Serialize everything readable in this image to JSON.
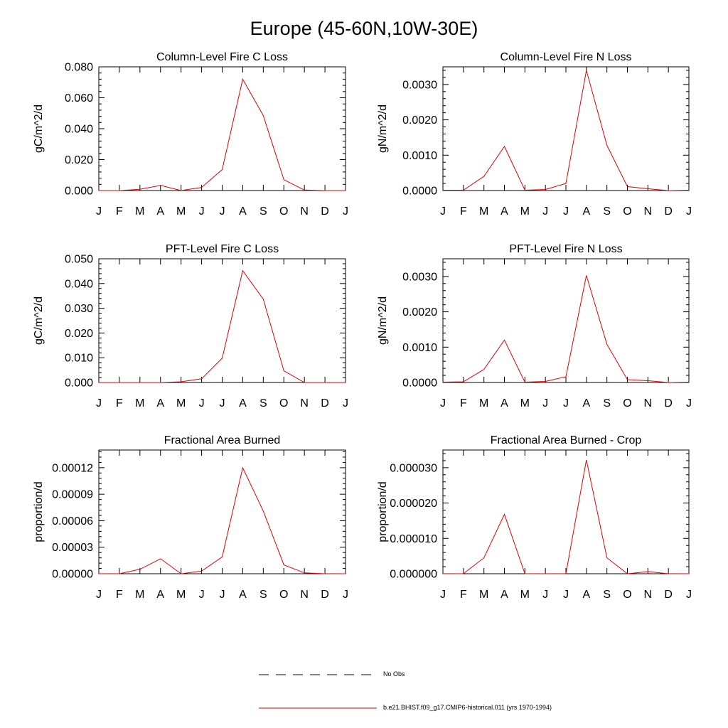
{
  "page_title": "Europe (45-60N,10W-30E)",
  "colors": {
    "model": "#e00000",
    "obs": "#000000",
    "axis": "#000000"
  },
  "month_labels": [
    "J",
    "F",
    "M",
    "A",
    "M",
    "J",
    "J",
    "A",
    "S",
    "O",
    "N",
    "D",
    "J"
  ],
  "legend": [
    {
      "label": "No Obs",
      "style": "dashed",
      "color": "#000000"
    },
    {
      "label": "b.e21.BHIST.f09_g17.CMIP6-historical.011 (yrs 1970-1994)",
      "style": "solid",
      "color": "#e00000"
    }
  ],
  "chart_data": [
    {
      "type": "line",
      "title": "Column-Level Fire C Loss",
      "ylabel": "gC/m^2/d",
      "ylim": [
        0,
        0.08
      ],
      "yticks": [
        0,
        0.02,
        0.04,
        0.06,
        0.08
      ],
      "ytick_labels": [
        "0.000",
        "0.020",
        "0.040",
        "0.060",
        "0.080"
      ],
      "x": [
        "J",
        "F",
        "M",
        "A",
        "M",
        "J",
        "J",
        "A",
        "S",
        "O",
        "N",
        "D",
        "J"
      ],
      "series": [
        {
          "values": [
            0,
            0,
            0.0008,
            0.0033,
            0,
            0.002,
            0.0135,
            0.072,
            0.0485,
            0.007,
            0.0003,
            0,
            0
          ]
        }
      ]
    },
    {
      "type": "line",
      "title": "Column-Level Fire N Loss",
      "ylabel": "gN/m^2/d",
      "ylim": [
        0,
        0.0035
      ],
      "yticks": [
        0,
        0.001,
        0.002,
        0.003
      ],
      "ytick_labels": [
        "0.0000",
        "0.0010",
        "0.0020",
        "0.0030"
      ],
      "x": [
        "J",
        "F",
        "M",
        "A",
        "M",
        "J",
        "J",
        "A",
        "S",
        "O",
        "N",
        "D",
        "J"
      ],
      "series": [
        {
          "values": [
            1e-05,
            1e-05,
            0.0004,
            0.00125,
            1e-05,
            3e-05,
            0.0002,
            0.0034,
            0.00128,
            0.00011,
            5e-05,
            0,
            1e-05
          ]
        }
      ]
    },
    {
      "type": "line",
      "title": "PFT-Level Fire C Loss",
      "ylabel": "gC/m^2/d",
      "ylim": [
        0,
        0.05
      ],
      "yticks": [
        0,
        0.01,
        0.02,
        0.03,
        0.04,
        0.05
      ],
      "ytick_labels": [
        "0.000",
        "0.010",
        "0.020",
        "0.030",
        "0.040",
        "0.050"
      ],
      "x": [
        "J",
        "F",
        "M",
        "A",
        "M",
        "J",
        "J",
        "A",
        "S",
        "O",
        "N",
        "D",
        "J"
      ],
      "series": [
        {
          "values": [
            0,
            0,
            0,
            0,
            0.0003,
            0.0015,
            0.0098,
            0.0452,
            0.0337,
            0.0047,
            0,
            0,
            0
          ]
        }
      ]
    },
    {
      "type": "line",
      "title": "PFT-Level Fire N Loss",
      "ylabel": "gN/m^2/d",
      "ylim": [
        0,
        0.0035
      ],
      "yticks": [
        0,
        0.001,
        0.002,
        0.003
      ],
      "ytick_labels": [
        "0.0000",
        "0.0010",
        "0.0020",
        "0.0030"
      ],
      "x": [
        "J",
        "F",
        "M",
        "A",
        "M",
        "J",
        "J",
        "A",
        "S",
        "O",
        "N",
        "D",
        "J"
      ],
      "series": [
        {
          "values": [
            1e-05,
            2e-05,
            0.00037,
            0.0012,
            1e-05,
            3e-05,
            0.00016,
            0.00303,
            0.00108,
            8e-05,
            5e-05,
            0,
            1e-05
          ]
        }
      ]
    },
    {
      "type": "line",
      "title": "Fractional Area Burned",
      "ylabel": "proportion/d",
      "ylim": [
        0,
        0.00014
      ],
      "yticks": [
        0,
        3e-05,
        6e-05,
        9e-05,
        0.00012
      ],
      "ytick_labels": [
        "0.00000",
        "0.00003",
        "0.00006",
        "0.00009",
        "0.00012"
      ],
      "x": [
        "J",
        "F",
        "M",
        "A",
        "M",
        "J",
        "J",
        "A",
        "S",
        "O",
        "N",
        "D",
        "J"
      ],
      "series": [
        {
          "values": [
            0,
            0,
            5e-06,
            1.7e-05,
            0,
            3e-06,
            1.9e-05,
            0.00012,
            7.1e-05,
            1e-05,
            1e-06,
            0,
            0
          ]
        }
      ]
    },
    {
      "type": "line",
      "title": "Fractional Area Burned - Crop",
      "ylabel": "proportion/d",
      "ylim": [
        0,
        3.5e-05
      ],
      "yticks": [
        0,
        1e-05,
        2e-05,
        3e-05
      ],
      "ytick_labels": [
        "0.000000",
        "0.000010",
        "0.000020",
        "0.000030"
      ],
      "x": [
        "J",
        "F",
        "M",
        "A",
        "M",
        "J",
        "J",
        "A",
        "S",
        "O",
        "N",
        "D",
        "J"
      ],
      "series": [
        {
          "values": [
            0,
            0,
            4.5e-06,
            1.68e-05,
            0,
            0,
            0,
            3.22e-05,
            4.5e-06,
            0,
            6e-07,
            0,
            0
          ]
        }
      ]
    }
  ]
}
